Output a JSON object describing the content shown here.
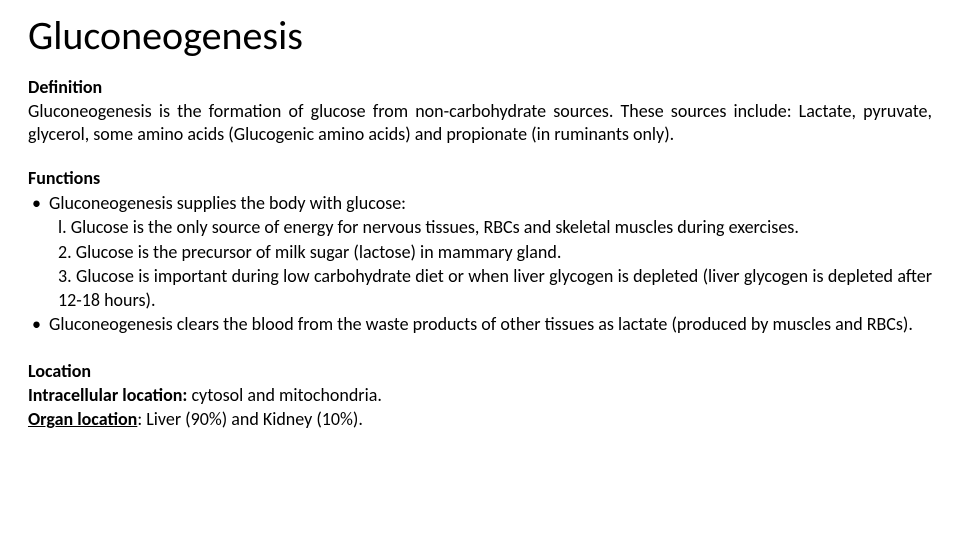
{
  "title": "Gluconeogenesis",
  "definition": {
    "heading": "Definition",
    "text": "Gluconeogenesis is the formation of glucose from non-carbohydrate sources. These sources include: Lactate, pyruvate, glycerol, some amino acids (Glucogenic amino acids) and propionate (in ruminants only)."
  },
  "functions": {
    "heading": "Functions",
    "bullet1": "Gluconeogenesis supplies the body with glucose:",
    "sub1": "l. Glucose is the only source of energy for nervous tissues, RBCs and skeletal muscles during exercises.",
    "sub2": "2. Glucose is the precursor of milk sugar (lactose) in mammary gland.",
    "sub3": "3. Glucose is important during low carbohydrate diet or when liver glycogen is depleted (liver glycogen is depleted after 12-18 hours).",
    "bullet2": "Gluconeogenesis clears the blood from the waste products of other tissues as lactate (produced by muscles and RBCs)."
  },
  "location": {
    "heading": "Location",
    "intra_label": "Intracellular location:",
    "intra_value": " cytosol and mitochondria.",
    "organ_label": "Organ location",
    "organ_value": ": Liver (90%) and Kidney (10%)."
  },
  "style": {
    "background_color": "#ffffff",
    "text_color": "#000000",
    "title_fontsize": 40,
    "body_fontsize": 18,
    "font_family": "Calibri",
    "slide_width": 960,
    "slide_height": 540
  }
}
